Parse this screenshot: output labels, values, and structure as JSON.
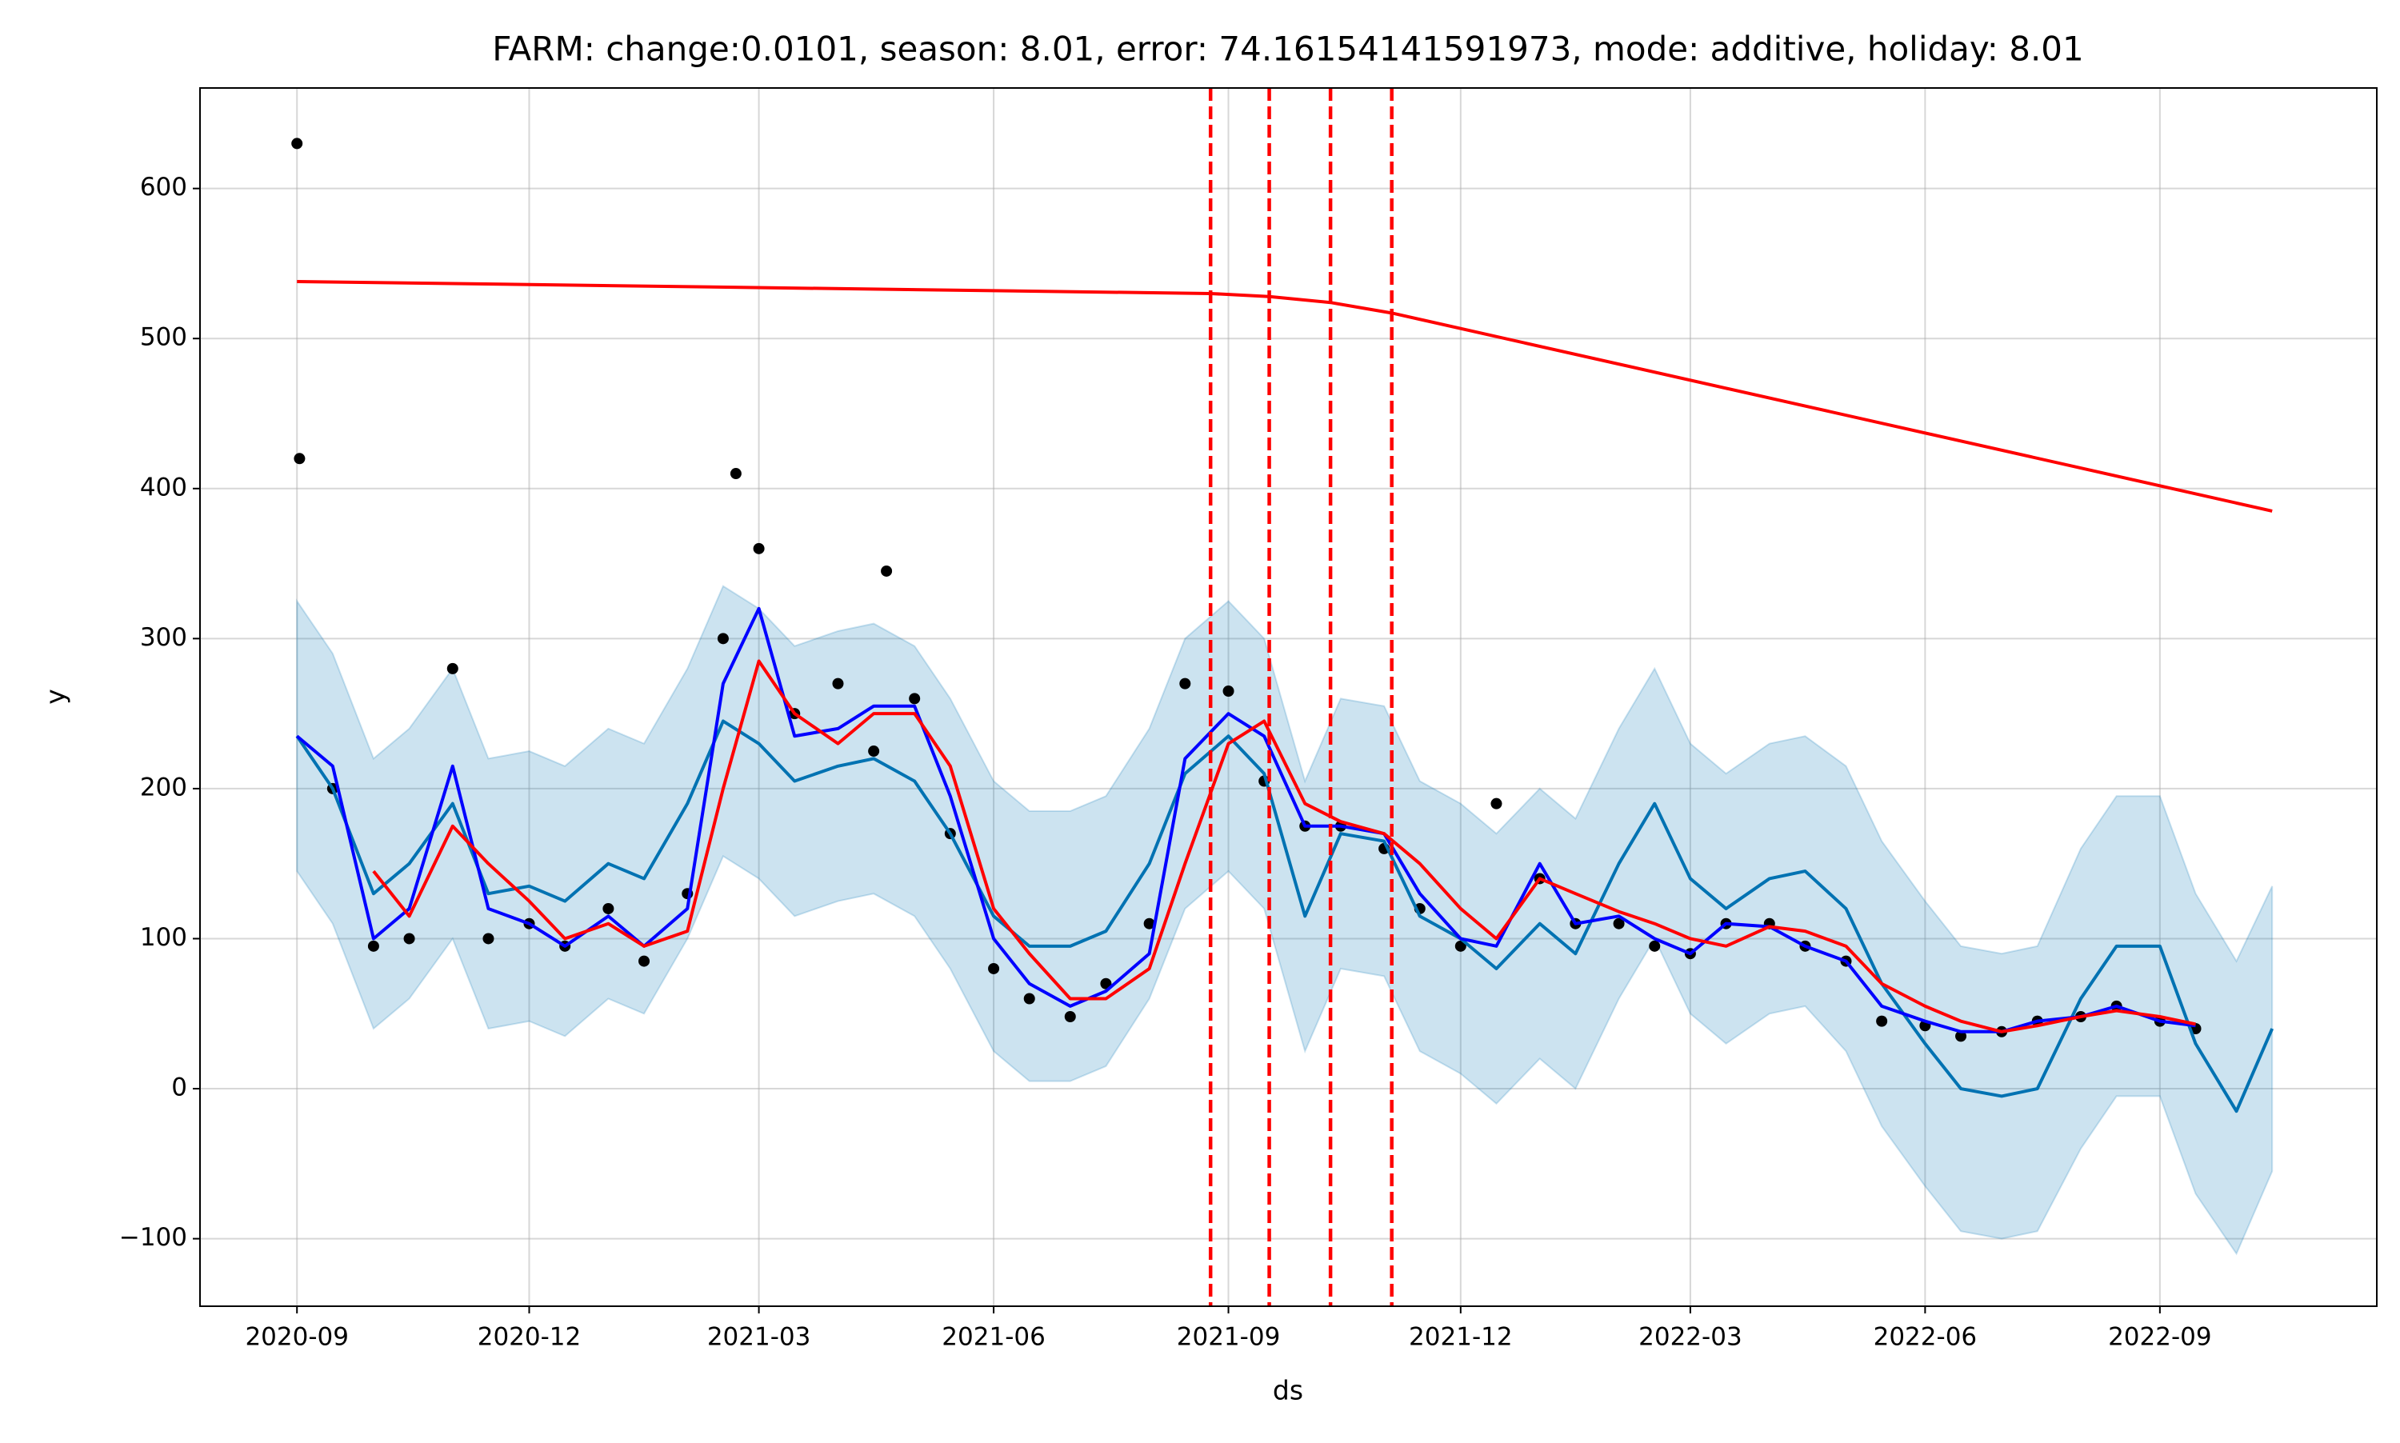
{
  "chart_data": {
    "type": "line",
    "title": "FARM: change:0.0101, season: 8.01, error: 74.16154141591973, mode: additive, holiday: 8.01",
    "xlabel": "ds",
    "ylabel": "y",
    "xlim": [
      "2020-07-25",
      "2022-11-25"
    ],
    "xticks": [
      "2020-09",
      "2020-12",
      "2021-03",
      "2021-06",
      "2021-09",
      "2021-12",
      "2022-03",
      "2022-06",
      "2022-09"
    ],
    "ylim": [
      -145,
      667
    ],
    "yticks": [
      {
        "value": -100,
        "label": "−100"
      },
      0,
      100,
      200,
      300,
      400,
      500,
      600
    ],
    "grid": true,
    "x": [
      "2020-09-01",
      "2020-09-15",
      "2020-10-01",
      "2020-10-15",
      "2020-11-01",
      "2020-11-15",
      "2020-12-01",
      "2020-12-15",
      "2021-01-01",
      "2021-01-15",
      "2021-02-01",
      "2021-02-15",
      "2021-03-01",
      "2021-03-15",
      "2021-04-01",
      "2021-04-15",
      "2021-05-01",
      "2021-05-15",
      "2021-06-01",
      "2021-06-15",
      "2021-07-01",
      "2021-07-15",
      "2021-08-01",
      "2021-08-15",
      "2021-09-01",
      "2021-09-15",
      "2021-10-01",
      "2021-10-15",
      "2021-11-01",
      "2021-11-15",
      "2021-12-01",
      "2021-12-15",
      "2022-01-01",
      "2022-01-15",
      "2022-02-01",
      "2022-02-15",
      "2022-03-01",
      "2022-03-15",
      "2022-04-01",
      "2022-04-15",
      "2022-05-01",
      "2022-05-15",
      "2022-06-01",
      "2022-06-15",
      "2022-07-01",
      "2022-07-15",
      "2022-08-01",
      "2022-08-15",
      "2022-09-01",
      "2022-09-15",
      "2022-10-01",
      "2022-10-15"
    ],
    "series": [
      {
        "type": "band",
        "color": "#0072b2",
        "upper": [
          325,
          290,
          220,
          240,
          280,
          220,
          225,
          215,
          240,
          230,
          280,
          335,
          320,
          295,
          305,
          310,
          295,
          260,
          205,
          185,
          185,
          195,
          240,
          300,
          325,
          300,
          205,
          260,
          255,
          205,
          190,
          170,
          200,
          180,
          240,
          280,
          230,
          210,
          230,
          235,
          215,
          165,
          125,
          95,
          90,
          95,
          160,
          195,
          195,
          130,
          85,
          135
        ],
        "lower": [
          145,
          110,
          40,
          60,
          100,
          40,
          45,
          35,
          60,
          50,
          100,
          155,
          140,
          115,
          125,
          130,
          115,
          80,
          25,
          5,
          5,
          15,
          60,
          120,
          145,
          120,
          25,
          80,
          75,
          25,
          10,
          -10,
          20,
          0,
          60,
          100,
          50,
          30,
          50,
          55,
          25,
          -25,
          -65,
          -95,
          -100,
          -95,
          -40,
          -5,
          -5,
          -70,
          -110,
          -55
        ]
      },
      {
        "type": "scatter",
        "color": "#000000",
        "x": [
          "2020-09-01",
          "2020-09-02",
          "2020-09-15",
          "2020-10-01",
          "2020-10-15",
          "2020-11-01",
          "2020-11-15",
          "2020-12-01",
          "2020-12-15",
          "2021-01-01",
          "2021-01-15",
          "2021-02-01",
          "2021-02-15",
          "2021-02-20",
          "2021-03-01",
          "2021-03-15",
          "2021-04-01",
          "2021-04-15",
          "2021-04-20",
          "2021-05-01",
          "2021-05-15",
          "2021-06-01",
          "2021-06-15",
          "2021-07-01",
          "2021-07-15",
          "2021-08-01",
          "2021-08-15",
          "2021-09-01",
          "2021-09-15",
          "2021-10-01",
          "2021-10-15",
          "2021-11-01",
          "2021-11-15",
          "2021-12-01",
          "2021-12-15",
          "2022-01-01",
          "2022-01-15",
          "2022-02-01",
          "2022-02-15",
          "2022-03-01",
          "2022-03-15",
          "2022-04-01",
          "2022-04-15",
          "2022-05-01",
          "2022-05-15",
          "2022-06-01",
          "2022-06-15",
          "2022-07-01",
          "2022-07-15",
          "2022-08-01",
          "2022-08-15",
          "2022-09-01",
          "2022-09-15"
        ],
        "values": [
          630,
          420,
          200,
          95,
          100,
          280,
          100,
          110,
          95,
          120,
          85,
          130,
          300,
          410,
          360,
          250,
          270,
          225,
          345,
          260,
          170,
          80,
          60,
          48,
          70,
          110,
          270,
          265,
          205,
          175,
          175,
          160,
          120,
          95,
          190,
          140,
          110,
          110,
          95,
          90,
          110,
          110,
          95,
          85,
          45,
          42,
          35,
          38,
          45,
          48,
          55,
          45,
          40
        ]
      },
      {
        "type": "line",
        "color": "#0072b2",
        "values": [
          235,
          200,
          130,
          150,
          190,
          130,
          135,
          125,
          150,
          140,
          190,
          245,
          230,
          205,
          215,
          220,
          205,
          170,
          115,
          95,
          95,
          105,
          150,
          210,
          235,
          210,
          115,
          170,
          165,
          115,
          100,
          80,
          110,
          90,
          150,
          190,
          140,
          120,
          140,
          145,
          120,
          70,
          30,
          0,
          -5,
          0,
          60,
          95,
          95,
          30,
          -15,
          40
        ]
      },
      {
        "type": "line",
        "color": "#ff0000",
        "x": [
          "2020-09-01",
          "2021-08-25",
          "2021-09-17",
          "2021-10-11",
          "2021-11-04",
          "2022-10-15"
        ],
        "values": [
          538,
          530,
          528,
          524,
          517,
          385
        ]
      },
      {
        "type": "line",
        "color": "#0000ff",
        "x": [
          "2020-09-01",
          "2020-09-15",
          "2020-10-01",
          "2020-10-15",
          "2020-11-01",
          "2020-11-15",
          "2020-12-01",
          "2020-12-15",
          "2021-01-01",
          "2021-01-15",
          "2021-02-01",
          "2021-02-15",
          "2021-03-01",
          "2021-03-15",
          "2021-04-01",
          "2021-04-15",
          "2021-05-01",
          "2021-05-15",
          "2021-06-01",
          "2021-06-15",
          "2021-07-01",
          "2021-07-15",
          "2021-08-01",
          "2021-08-15",
          "2021-09-01",
          "2021-09-15",
          "2021-10-01",
          "2021-10-15",
          "2021-11-01",
          "2021-11-15",
          "2021-12-01",
          "2021-12-15",
          "2022-01-01",
          "2022-01-15",
          "2022-02-01",
          "2022-02-15",
          "2022-03-01",
          "2022-03-15",
          "2022-04-01",
          "2022-04-15",
          "2022-05-01",
          "2022-05-15",
          "2022-06-01",
          "2022-06-15",
          "2022-07-01",
          "2022-07-15",
          "2022-08-01",
          "2022-08-15",
          "2022-09-01",
          "2022-09-15"
        ],
        "values": [
          235,
          215,
          100,
          120,
          215,
          120,
          110,
          95,
          115,
          95,
          120,
          270,
          320,
          235,
          240,
          255,
          255,
          195,
          100,
          70,
          55,
          65,
          90,
          220,
          250,
          235,
          175,
          175,
          170,
          130,
          100,
          95,
          150,
          110,
          115,
          100,
          90,
          110,
          108,
          95,
          85,
          55,
          45,
          38,
          38,
          45,
          48,
          55,
          45,
          42
        ]
      },
      {
        "type": "line",
        "color": "#ff0000",
        "x": [
          "2020-10-01",
          "2020-10-15",
          "2020-11-01",
          "2020-11-15",
          "2020-12-01",
          "2020-12-15",
          "2021-01-01",
          "2021-01-15",
          "2021-02-01",
          "2021-02-15",
          "2021-03-01",
          "2021-03-15",
          "2021-04-01",
          "2021-04-15",
          "2021-05-01",
          "2021-05-15",
          "2021-06-01",
          "2021-06-15",
          "2021-07-01",
          "2021-07-15",
          "2021-08-01",
          "2021-08-15",
          "2021-09-01",
          "2021-09-15",
          "2021-10-01",
          "2021-10-15",
          "2021-11-01",
          "2021-11-15",
          "2021-12-01",
          "2021-12-15",
          "2022-01-01",
          "2022-01-15",
          "2022-02-01",
          "2022-02-15",
          "2022-03-01",
          "2022-03-15",
          "2022-04-01",
          "2022-04-15",
          "2022-05-01",
          "2022-05-15",
          "2022-06-01",
          "2022-06-15",
          "2022-07-01",
          "2022-07-15",
          "2022-08-01",
          "2022-08-15",
          "2022-09-01",
          "2022-09-15"
        ],
        "values": [
          145,
          115,
          175,
          150,
          125,
          100,
          110,
          95,
          105,
          200,
          285,
          250,
          230,
          250,
          250,
          215,
          120,
          90,
          60,
          60,
          80,
          150,
          230,
          245,
          190,
          178,
          170,
          150,
          120,
          100,
          140,
          130,
          118,
          110,
          100,
          95,
          108,
          105,
          95,
          70,
          55,
          45,
          38,
          42,
          48,
          52,
          48,
          43
        ]
      }
    ],
    "changepoints": [
      "2021-08-25",
      "2021-09-17",
      "2021-10-11",
      "2021-11-04"
    ],
    "changepoint_color": "#ff0000"
  }
}
